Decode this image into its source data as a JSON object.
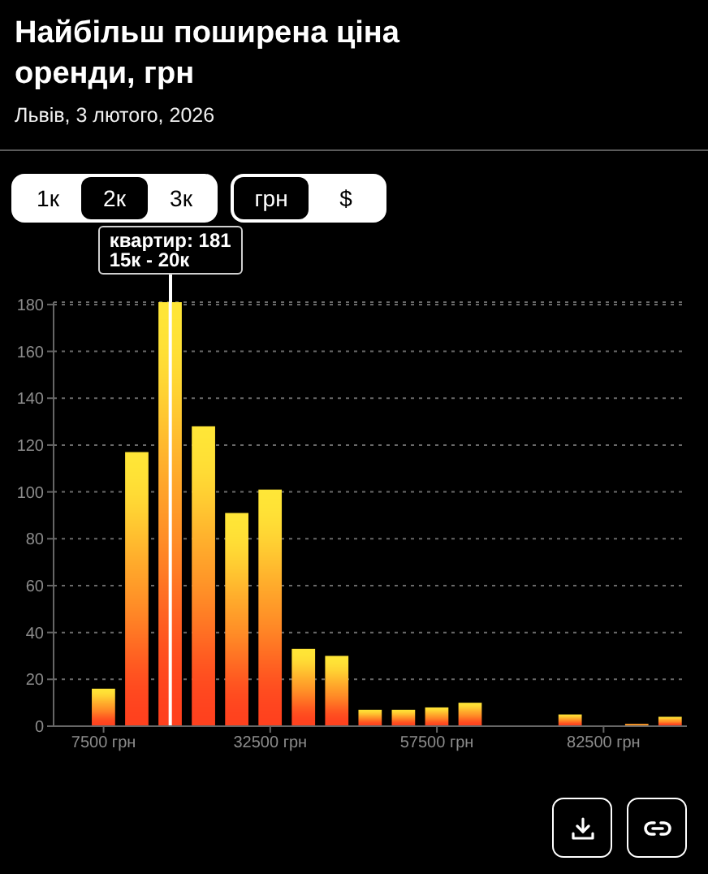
{
  "chart_data": {
    "type": "histogram",
    "title": "Найбільш поширена ціна оренди, грн",
    "subtitle": "Львів, 3 лютого, 2026",
    "bins": [
      5000,
      10000,
      15000,
      20000,
      25000,
      30000,
      35000,
      40000,
      45000,
      50000,
      55000,
      60000,
      65000,
      70000,
      75000,
      80000,
      85000,
      90000,
      95000
    ],
    "values": [
      16,
      117,
      181,
      128,
      91,
      101,
      33,
      30,
      7,
      7,
      8,
      10,
      0,
      0,
      5,
      0,
      1,
      4
    ],
    "color": "#ff9a28",
    "xlim": [
      0,
      95000
    ],
    "xticks": [
      {
        "value": 7500,
        "label": "7500 грн"
      },
      {
        "value": 32500,
        "label": "32500 грн"
      },
      {
        "value": 57500,
        "label": "57500 грн"
      },
      {
        "value": 82500,
        "label": "82500 грн"
      }
    ],
    "ylim": [
      0,
      181
    ],
    "yticks": [
      0,
      20,
      40,
      60,
      80,
      100,
      120,
      140,
      160,
      180
    ],
    "grid": "y",
    "ref_lines": [
      {
        "axis": "x",
        "value": 17500,
        "color": "#ffffff"
      }
    ],
    "annotations": [
      {
        "text": "квартир: 181\n15к - 20к",
        "x": 17500,
        "y": 181
      },
      "1к",
      "2к",
      "3к",
      "грн",
      "$"
    ]
  }
}
